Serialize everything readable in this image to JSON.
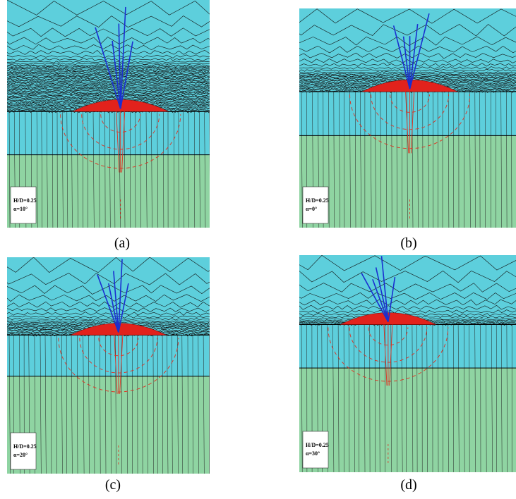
{
  "panels": [
    {
      "caption": "(a)",
      "label_lines": [
        "H/D=0.25",
        "α=10°"
      ]
    },
    {
      "caption": "(b)",
      "label_lines": [
        "H/D=0.25",
        "α=0°"
      ]
    },
    {
      "caption": "(c)",
      "label_lines": [
        "H/D=0.25",
        "α=20°"
      ]
    },
    {
      "caption": "(d)",
      "label_lines": [
        "H/D=0.25",
        "α=30°"
      ]
    }
  ]
}
